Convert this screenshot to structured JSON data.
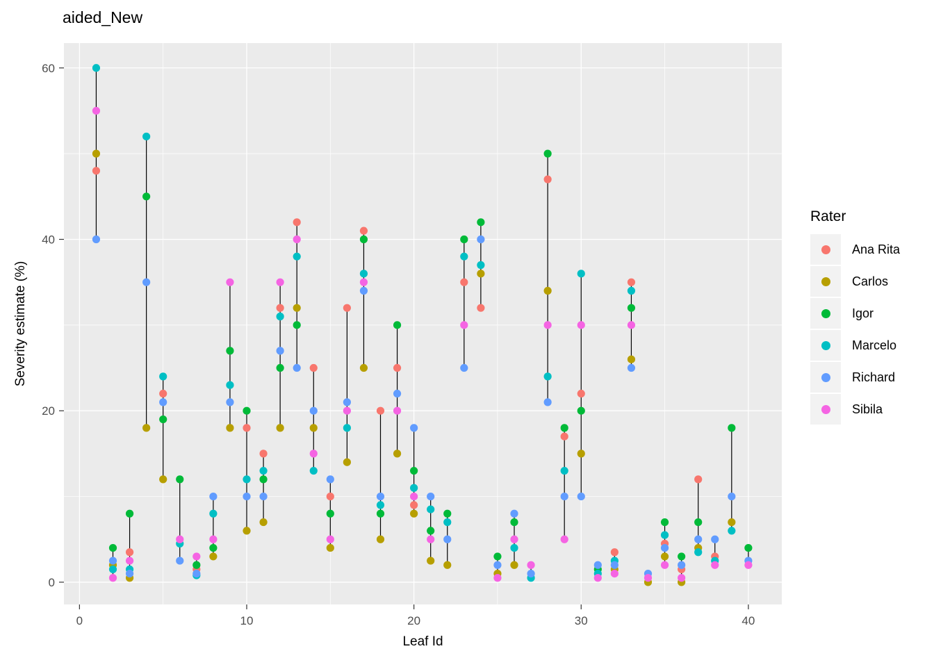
{
  "title": "aided_New",
  "chart_data": {
    "type": "scatter",
    "title": "aided_New",
    "xlabel": "Leaf Id",
    "ylabel": "Severity estimate (%)",
    "legend_title": "Rater",
    "legend_position": "right",
    "grid": "on",
    "panel_bg": "#EBEBEB",
    "grid_color": "#FFFFFF",
    "tick_label_color": "#4D4D4D",
    "range_line_color": "#000000",
    "xlim": [
      -0.93,
      42.0
    ],
    "ylim": [
      -2.6,
      62.9
    ],
    "x_ticks": [
      0,
      10,
      20,
      30,
      40
    ],
    "y_ticks": [
      0,
      20,
      40,
      60
    ],
    "x_minor": [
      5,
      15,
      25,
      35
    ],
    "y_minor": [
      10,
      30,
      50
    ],
    "series": [
      {
        "name": "Ana Rita",
        "color": "#F8766D",
        "points": [
          [
            1,
            48
          ],
          [
            3,
            3.5
          ],
          [
            5,
            22
          ],
          [
            7,
            1.5
          ],
          [
            10,
            18
          ],
          [
            11,
            15
          ],
          [
            12,
            32
          ],
          [
            13,
            42
          ],
          [
            14,
            25
          ],
          [
            15,
            10
          ],
          [
            16,
            32
          ],
          [
            17,
            41
          ],
          [
            18,
            20
          ],
          [
            19,
            25
          ],
          [
            20,
            9
          ],
          [
            23,
            35
          ],
          [
            24,
            32
          ],
          [
            28,
            47
          ],
          [
            29,
            17
          ],
          [
            30,
            22
          ],
          [
            32,
            3.5
          ],
          [
            33,
            35
          ],
          [
            35,
            4.5
          ],
          [
            36,
            1.5
          ],
          [
            37,
            12
          ],
          [
            38,
            3
          ]
        ]
      },
      {
        "name": "Carlos",
        "color": "#B79F00",
        "points": [
          [
            1,
            50
          ],
          [
            2,
            2
          ],
          [
            3,
            0.5
          ],
          [
            4,
            18
          ],
          [
            5,
            12
          ],
          [
            8,
            3
          ],
          [
            9,
            18
          ],
          [
            10,
            6
          ],
          [
            11,
            7
          ],
          [
            12,
            18
          ],
          [
            13,
            32
          ],
          [
            14,
            18
          ],
          [
            15,
            4
          ],
          [
            16,
            14
          ],
          [
            17,
            25
          ],
          [
            18,
            5
          ],
          [
            19,
            15
          ],
          [
            20,
            8
          ],
          [
            21,
            2.5
          ],
          [
            22,
            2
          ],
          [
            24,
            36
          ],
          [
            25,
            1
          ],
          [
            26,
            2
          ],
          [
            28,
            34
          ],
          [
            30,
            15
          ],
          [
            32,
            1.5
          ],
          [
            33,
            26
          ],
          [
            34,
            0
          ],
          [
            35,
            3
          ],
          [
            36,
            0
          ],
          [
            37,
            4
          ],
          [
            39,
            7
          ]
        ]
      },
      {
        "name": "Igor",
        "color": "#00BA38",
        "points": [
          [
            2,
            4
          ],
          [
            3,
            8
          ],
          [
            4,
            45
          ],
          [
            5,
            19
          ],
          [
            6,
            12
          ],
          [
            7,
            2
          ],
          [
            8,
            4
          ],
          [
            9,
            27
          ],
          [
            10,
            20
          ],
          [
            11,
            12
          ],
          [
            12,
            25
          ],
          [
            13,
            30
          ],
          [
            15,
            8
          ],
          [
            17,
            40
          ],
          [
            18,
            8
          ],
          [
            19,
            30
          ],
          [
            20,
            13
          ],
          [
            21,
            6
          ],
          [
            22,
            8
          ],
          [
            23,
            40
          ],
          [
            24,
            42
          ],
          [
            25,
            3
          ],
          [
            26,
            7
          ],
          [
            28,
            50
          ],
          [
            29,
            18
          ],
          [
            30,
            20
          ],
          [
            31,
            1.5
          ],
          [
            33,
            32
          ],
          [
            35,
            7
          ],
          [
            36,
            3
          ],
          [
            37,
            7
          ],
          [
            39,
            18
          ],
          [
            40,
            4
          ]
        ]
      },
      {
        "name": "Marcelo",
        "color": "#00BFC4",
        "points": [
          [
            1,
            60
          ],
          [
            2,
            1.5
          ],
          [
            3,
            1.5
          ],
          [
            4,
            52
          ],
          [
            5,
            24
          ],
          [
            6,
            4.5
          ],
          [
            7,
            0.8
          ],
          [
            8,
            8
          ],
          [
            9,
            23
          ],
          [
            10,
            12
          ],
          [
            11,
            13
          ],
          [
            12,
            31
          ],
          [
            13,
            38
          ],
          [
            14,
            13
          ],
          [
            16,
            18
          ],
          [
            17,
            36
          ],
          [
            18,
            9
          ],
          [
            20,
            11
          ],
          [
            21,
            8.5
          ],
          [
            22,
            7
          ],
          [
            23,
            38
          ],
          [
            24,
            37
          ],
          [
            26,
            4
          ],
          [
            27,
            0.5
          ],
          [
            28,
            24
          ],
          [
            29,
            13
          ],
          [
            30,
            36
          ],
          [
            31,
            1
          ],
          [
            32,
            2.5
          ],
          [
            33,
            34
          ],
          [
            35,
            5.5
          ],
          [
            37,
            3.5
          ],
          [
            38,
            2.5
          ],
          [
            39,
            6
          ]
        ]
      },
      {
        "name": "Richard",
        "color": "#619CFF",
        "points": [
          [
            1,
            40
          ],
          [
            2,
            2.5
          ],
          [
            3,
            1
          ],
          [
            4,
            35
          ],
          [
            5,
            21
          ],
          [
            6,
            2.5
          ],
          [
            7,
            1
          ],
          [
            8,
            10
          ],
          [
            9,
            21
          ],
          [
            10,
            10
          ],
          [
            11,
            10
          ],
          [
            12,
            27
          ],
          [
            13,
            25
          ],
          [
            14,
            20
          ],
          [
            15,
            12
          ],
          [
            16,
            21
          ],
          [
            17,
            34
          ],
          [
            18,
            10
          ],
          [
            19,
            22
          ],
          [
            20,
            18
          ],
          [
            21,
            10
          ],
          [
            22,
            5
          ],
          [
            23,
            25
          ],
          [
            24,
            40
          ],
          [
            25,
            2
          ],
          [
            26,
            8
          ],
          [
            27,
            1
          ],
          [
            28,
            21
          ],
          [
            29,
            10
          ],
          [
            30,
            10
          ],
          [
            31,
            2
          ],
          [
            32,
            2
          ],
          [
            33,
            25
          ],
          [
            34,
            1
          ],
          [
            35,
            4
          ],
          [
            36,
            2
          ],
          [
            37,
            5
          ],
          [
            38,
            5
          ],
          [
            39,
            10
          ],
          [
            40,
            2.5
          ]
        ]
      },
      {
        "name": "Sibila",
        "color": "#F564E3",
        "points": [
          [
            1,
            55
          ],
          [
            2,
            0.5
          ],
          [
            3,
            2.5
          ],
          [
            6,
            5
          ],
          [
            7,
            3
          ],
          [
            8,
            5
          ],
          [
            9,
            35
          ],
          [
            12,
            35
          ],
          [
            13,
            40
          ],
          [
            14,
            15
          ],
          [
            15,
            5
          ],
          [
            16,
            20
          ],
          [
            17,
            35
          ],
          [
            19,
            20
          ],
          [
            20,
            10
          ],
          [
            21,
            5
          ],
          [
            23,
            30
          ],
          [
            25,
            0.5
          ],
          [
            26,
            5
          ],
          [
            27,
            2
          ],
          [
            28,
            30
          ],
          [
            29,
            5
          ],
          [
            30,
            30
          ],
          [
            31,
            0.5
          ],
          [
            32,
            1
          ],
          [
            33,
            30
          ],
          [
            34,
            0.5
          ],
          [
            35,
            2
          ],
          [
            36,
            0.5
          ],
          [
            38,
            2
          ],
          [
            40,
            2
          ]
        ]
      }
    ]
  }
}
